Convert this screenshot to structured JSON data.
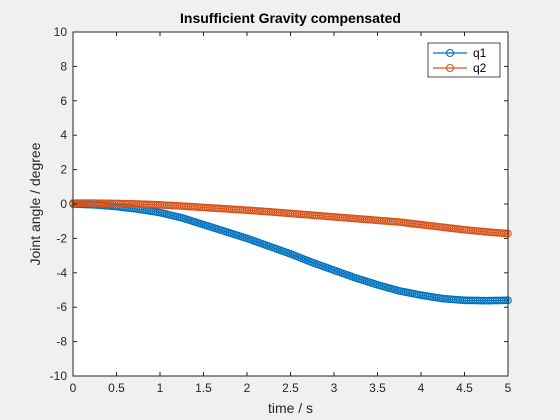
{
  "chart_data": {
    "type": "line",
    "title": "Insufficient Gravity compensated",
    "xlabel": "time / s",
    "ylabel": "Joint angle / degree",
    "xlim": [
      0,
      5
    ],
    "ylim": [
      -10,
      10
    ],
    "xticks": [
      "0",
      "0.5",
      "1",
      "1.5",
      "2",
      "2.5",
      "3",
      "3.5",
      "4",
      "4.5",
      "5"
    ],
    "yticks": [
      "10",
      "8",
      "6",
      "4",
      "2",
      "0",
      "-2",
      "-4",
      "-6",
      "-8",
      "-10"
    ],
    "grid": false,
    "legend_position": "top-right",
    "x": [
      0,
      0.25,
      0.5,
      0.75,
      1,
      1.25,
      1.5,
      1.75,
      2,
      2.25,
      2.5,
      2.75,
      3,
      3.25,
      3.5,
      3.75,
      4,
      4.25,
      4.5,
      4.75,
      5
    ],
    "series": [
      {
        "name": "q1",
        "color": "#0072bd",
        "marker": "circle",
        "values": [
          0,
          -0.05,
          -0.15,
          -0.3,
          -0.5,
          -0.8,
          -1.2,
          -1.6,
          -2.0,
          -2.45,
          -2.9,
          -3.4,
          -3.85,
          -4.3,
          -4.7,
          -5.05,
          -5.3,
          -5.5,
          -5.6,
          -5.62,
          -5.6
        ]
      },
      {
        "name": "q2",
        "color": "#d95319",
        "marker": "circle",
        "values": [
          0.05,
          0.05,
          0.03,
          0.0,
          -0.05,
          -0.12,
          -0.2,
          -0.28,
          -0.36,
          -0.45,
          -0.55,
          -0.65,
          -0.75,
          -0.85,
          -0.95,
          -1.05,
          -1.2,
          -1.35,
          -1.5,
          -1.62,
          -1.72
        ]
      }
    ]
  }
}
